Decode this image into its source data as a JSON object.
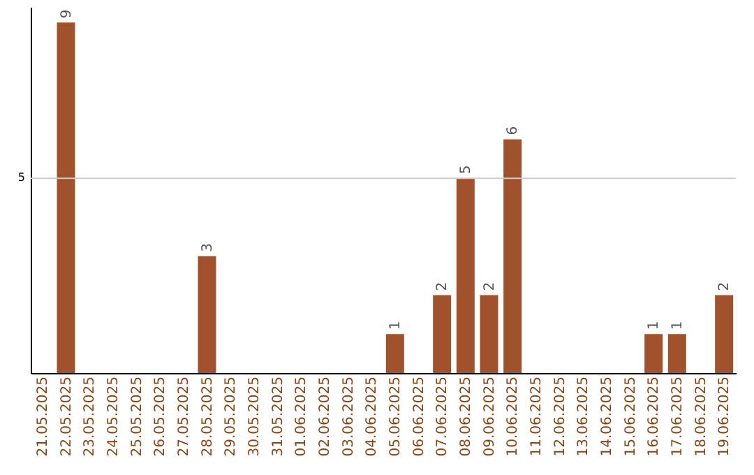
{
  "chart_data": {
    "type": "bar",
    "categories": [
      "21.05.2025",
      "22.05.2025",
      "23.05.2025",
      "24.05.2025",
      "25.05.2025",
      "26.05.2025",
      "27.05.2025",
      "28.05.2025",
      "29.05.2025",
      "30.05.2025",
      "31.05.2025",
      "01.06.2025",
      "02.06.2025",
      "03.06.2025",
      "04.06.2025",
      "05.06.2025",
      "06.06.2025",
      "07.06.2025",
      "08.06.2025",
      "09.06.2025",
      "10.06.2025",
      "11.06.2025",
      "12.06.2025",
      "13.06.2025",
      "14.06.2025",
      "15.06.2025",
      "16.06.2025",
      "17.06.2025",
      "18.06.2025",
      "19.06.2025"
    ],
    "values": [
      0,
      9,
      0,
      0,
      0,
      0,
      0,
      3,
      0,
      0,
      0,
      0,
      0,
      0,
      0,
      1,
      0,
      2,
      5,
      2,
      6,
      0,
      0,
      0,
      0,
      0,
      1,
      1,
      0,
      2
    ],
    "value_labels": [
      null,
      "9",
      null,
      null,
      null,
      null,
      null,
      "3",
      null,
      null,
      null,
      null,
      null,
      null,
      null,
      "1",
      null,
      "2",
      "5",
      "2",
      "6",
      null,
      null,
      null,
      null,
      null,
      "1",
      "1",
      null,
      "2"
    ],
    "color": "#a0522d",
    "ylim": [
      0,
      9.4
    ],
    "ref_lines": [
      {
        "axis": "y",
        "value": 5,
        "label": "5",
        "color": "#cccccc"
      }
    ]
  }
}
